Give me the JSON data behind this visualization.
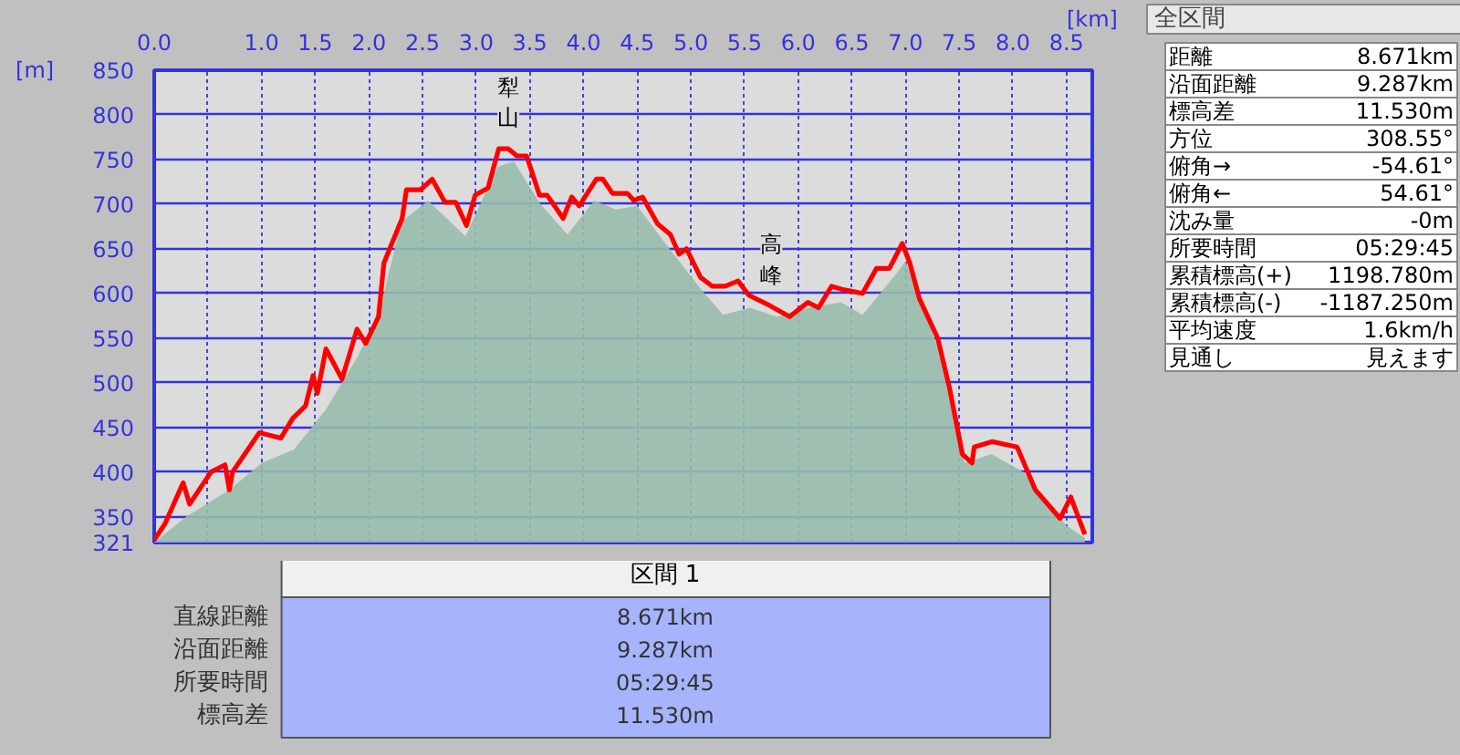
{
  "chart_data": [
    {
      "type": "line",
      "xlabel": "[km]",
      "ylabel": "[m]",
      "xlim": [
        0,
        8.74
      ],
      "ylim": [
        321,
        850
      ],
      "xticks": [
        {
          "value": 0,
          "label": "0.0"
        },
        {
          "value": 0.5,
          "label": null
        },
        {
          "value": 1,
          "label": "1.0"
        },
        {
          "value": 1.5,
          "label": "1.5"
        },
        {
          "value": 2,
          "label": "2.0"
        },
        {
          "value": 2.5,
          "label": "2.5"
        },
        {
          "value": 3,
          "label": "3.0"
        },
        {
          "value": 3.5,
          "label": "3.5"
        },
        {
          "value": 4,
          "label": "4.0"
        },
        {
          "value": 4.5,
          "label": "4.5"
        },
        {
          "value": 5,
          "label": "5.0"
        },
        {
          "value": 5.5,
          "label": "5.5"
        },
        {
          "value": 6,
          "label": "6.0"
        },
        {
          "value": 6.5,
          "label": "6.5"
        },
        {
          "value": 7,
          "label": "7.0"
        },
        {
          "value": 7.5,
          "label": "7.5"
        },
        {
          "value": 8,
          "label": "8.0"
        },
        {
          "value": 8.5,
          "label": "8.5"
        }
      ],
      "yticks": [
        321,
        350,
        400,
        450,
        500,
        550,
        600,
        650,
        700,
        750,
        800,
        850
      ],
      "grid": true,
      "series": [
        {
          "type": "area",
          "color": "#98bcac",
          "x": [
            0,
            0.3,
            0.7,
            1.0,
            1.3,
            1.6,
            1.9,
            2.1,
            2.3,
            2.55,
            2.9,
            3.2,
            3.35,
            3.6,
            3.85,
            4.1,
            4.3,
            4.5,
            4.8,
            5.1,
            5.3,
            5.55,
            5.8,
            6.1,
            6.4,
            6.6,
            6.9,
            7.0,
            7.3,
            7.55,
            7.8,
            8.1,
            8.5,
            8.671
          ],
          "values": [
            321,
            350,
            380,
            410,
            425,
            470,
            530,
            580,
            680,
            704,
            664,
            742,
            748,
            700,
            666,
            704,
            694,
            698,
            650,
            604,
            576,
            584,
            574,
            584,
            590,
            576,
            620,
            636,
            540,
            410,
            420,
            400,
            340,
            326
          ]
        },
        {
          "type": "line",
          "color": "#ff0000",
          "x": [
            0,
            0.1,
            0.27,
            0.33,
            0.44,
            0.53,
            0.66,
            0.7,
            0.73,
            0.98,
            1.18,
            1.29,
            1.41,
            1.48,
            1.52,
            1.6,
            1.75,
            1.89,
            1.97,
            2.09,
            2.14,
            2.31,
            2.35,
            2.48,
            2.59,
            2.71,
            2.81,
            2.91,
            2.99,
            3.11,
            3.21,
            3.3,
            3.38,
            3.47,
            3.59,
            3.66,
            3.73,
            3.81,
            3.89,
            3.96,
            4.12,
            4.18,
            4.27,
            4.41,
            4.47,
            4.55,
            4.69,
            4.81,
            4.89,
            4.96,
            5.09,
            5.2,
            5.32,
            5.44,
            5.54,
            5.71,
            5.92,
            6.09,
            6.19,
            6.31,
            6.43,
            6.6,
            6.73,
            6.85,
            6.97,
            7.04,
            7.13,
            7.3,
            7.41,
            7.53,
            7.62,
            7.64,
            7.81,
            8.04,
            8.21,
            8.44,
            8.54,
            8.671
          ],
          "values": [
            324,
            342,
            388,
            364,
            384,
            400,
            408,
            380,
            400,
            444,
            438,
            460,
            474,
            508,
            488,
            538,
            504,
            560,
            544,
            574,
            634,
            684,
            716,
            716,
            728,
            702,
            702,
            676,
            710,
            718,
            762,
            762,
            754,
            754,
            710,
            710,
            698,
            684,
            708,
            698,
            728,
            728,
            712,
            712,
            704,
            708,
            678,
            666,
            644,
            650,
            618,
            608,
            608,
            614,
            598,
            588,
            574,
            590,
            584,
            608,
            604,
            600,
            628,
            628,
            656,
            634,
            594,
            550,
            494,
            420,
            410,
            428,
            434,
            428,
            380,
            348,
            372,
            330
          ]
        }
      ],
      "annotations": [
        {
          "text": "犁山",
          "x": 3.3,
          "y": 762
        },
        {
          "text": "高峰",
          "x": 5.75,
          "y": 586
        }
      ]
    },
    {
      "type": "other",
      "title": "全区間",
      "annotations": [
        "距離",
        "8.671km",
        "沿面距離",
        "9.287km",
        "標高差",
        "11.530m",
        "方位",
        "308.55°",
        "俯角→",
        "-54.61°",
        "俯角←",
        "54.61°",
        "沈み量",
        "-0m",
        "所要時間",
        "05:29:45",
        "累積標高(+)",
        "1198.780m",
        "累積標高(-)",
        "-1187.250m",
        "平均速度",
        "1.6km/h",
        "見通し",
        "見えます"
      ]
    },
    {
      "type": "other",
      "title": "区間 1",
      "annotations": [
        "直線距離",
        "8.671km",
        "沿面距離",
        "9.287km",
        "所要時間",
        "05:29:45",
        "標高差",
        "11.530m"
      ]
    }
  ]
}
